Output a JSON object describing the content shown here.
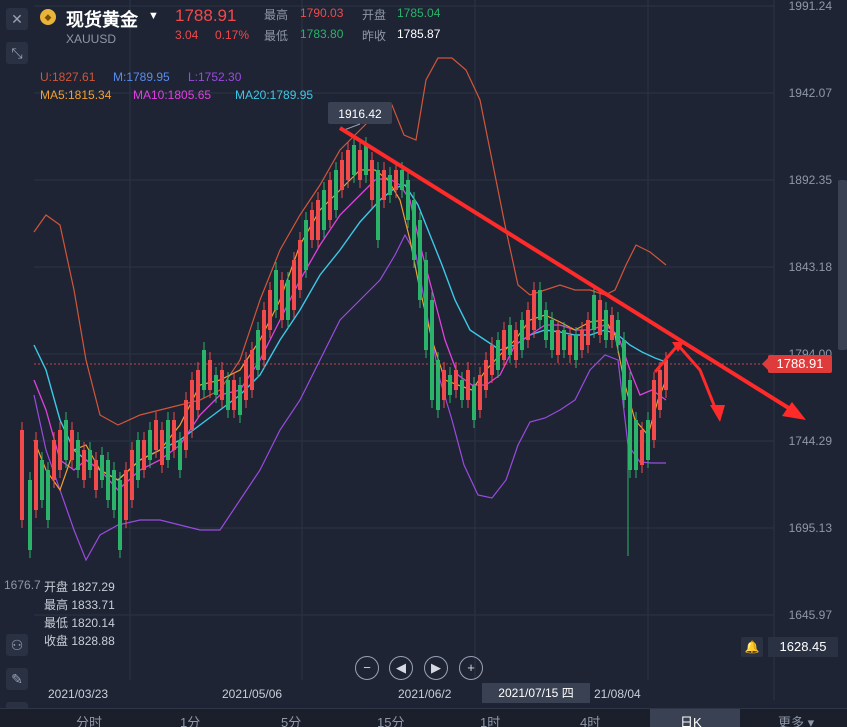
{
  "header": {
    "coin_icon": "gold-coin-icon",
    "name": "现货黄金",
    "code": "XAUUSD",
    "price": "1788.91",
    "change": "3.04",
    "change_pct": "0.17%",
    "high_label": "最高",
    "high": "1790.03",
    "open_label": "开盘",
    "open": "1785.04",
    "low_label": "最低",
    "low": "1783.80",
    "prev_label": "昨收",
    "prev": "1785.87"
  },
  "indicators": {
    "boll_u": "U:1827.61",
    "boll_m": "M:1789.95",
    "boll_l": "L:1752.30",
    "ma5": "MA5:1815.34",
    "ma10": "MA10:1805.65",
    "ma20": "MA20:1789.95"
  },
  "colors": {
    "up": "#f04a4a",
    "down": "#2bb36a",
    "ma5": "#f0a030",
    "ma10": "#e040e0",
    "ma20": "#3cc8e8",
    "boll_u": "#d2553a",
    "boll_l": "#9a4ae0",
    "trend": "#ff2a2a"
  },
  "y_axis": [
    "1991.24",
    "1942.07",
    "1892.35",
    "1843.18",
    "1794.00",
    "1744.29",
    "1695.13",
    "1645.97"
  ],
  "peak_label": "1916.42",
  "current_price_badge": "1788.91",
  "left_cut_label": "1676.7",
  "ohlc": {
    "open_label": "开盘",
    "open": "1827.29",
    "high_label": "最高",
    "high": "1833.71",
    "low_label": "最低",
    "low": "1820.14",
    "close_label": "收盘",
    "close": "1828.88"
  },
  "controls": [
    "zoom-out",
    "prev",
    "next",
    "zoom-in"
  ],
  "controls_glyphs": [
    "−",
    "◀",
    "▶",
    "+"
  ],
  "low_value": "1628.45",
  "dates": [
    "2021/03/23",
    "2021/05/06",
    "2021/06/2",
    "2021/07/15 四",
    "21/08/04"
  ],
  "tabs": [
    "分时",
    "1分",
    "5分",
    "15分",
    "1时",
    "4时",
    "日K",
    "更多"
  ],
  "active_tab": "日K"
}
